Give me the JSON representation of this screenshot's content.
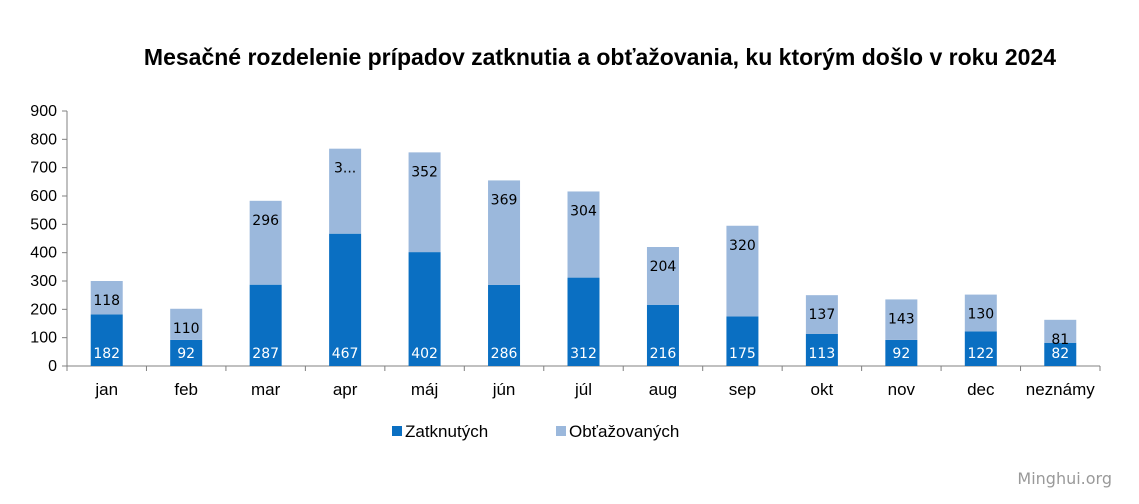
{
  "watermark": "Minghui.org",
  "colors": {
    "zatknutych": "#0a6fc2",
    "obtazovanych": "#9bb8dc",
    "axis": "#808080"
  },
  "chart_data": {
    "type": "bar",
    "stacked": true,
    "title": "Mesačné rozdelenie prípadov zatknutia a obťažovania, ku ktorým došlo v roku 2024",
    "xlabel": "",
    "ylabel": "",
    "ylim": [
      0,
      900
    ],
    "yticks": [
      "0",
      "100",
      "200",
      "300",
      "400",
      "500",
      "600",
      "700",
      "800",
      "900"
    ],
    "grid": false,
    "legend_position": "bottom",
    "categories": [
      "jan",
      "feb",
      "mar",
      "apr",
      "máj",
      "jún",
      "júl",
      "aug",
      "sep",
      "okt",
      "nov",
      "dec",
      "neznámy"
    ],
    "series": [
      {
        "name": "Zatknutých",
        "values": [
          182,
          92,
          287,
          467,
          402,
          286,
          312,
          216,
          175,
          113,
          92,
          122,
          82
        ],
        "labels": [
          "182",
          "92",
          "287",
          "467",
          "402",
          "286",
          "312",
          "216",
          "175",
          "113",
          "92",
          "122",
          "82"
        ]
      },
      {
        "name": "Obťažovaných",
        "values": [
          118,
          110,
          296,
          300,
          352,
          369,
          304,
          204,
          320,
          137,
          143,
          130,
          81
        ],
        "labels": [
          "118",
          "110",
          "296",
          "3...",
          "352",
          "369",
          "304",
          "204",
          "320",
          "137",
          "143",
          "130",
          "81"
        ]
      }
    ]
  }
}
